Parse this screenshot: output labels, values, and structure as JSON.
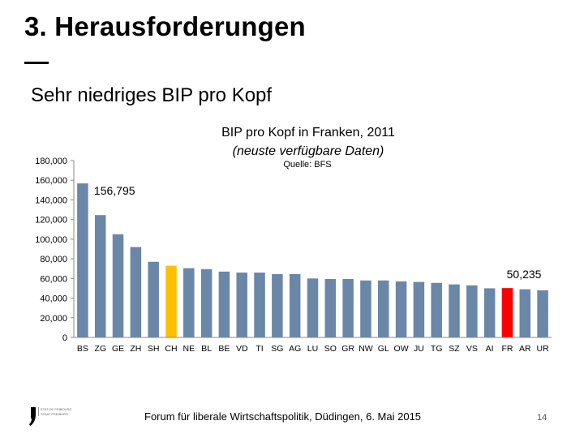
{
  "slide": {
    "title": "3. Herausforderungen",
    "subtitle": "Sehr niedriges BIP pro Kopf"
  },
  "chart_data": {
    "type": "bar",
    "title": "BIP pro Kopf in Franken, 2011",
    "subtitle": "(neuste verfügbare Daten)",
    "source": "Quelle: BFS",
    "xlabel": "",
    "ylabel": "",
    "ylim": [
      0,
      180000
    ],
    "yticks": [
      "0",
      "20,000",
      "40,000",
      "60,000",
      "80,000",
      "100,000",
      "120,000",
      "140,000",
      "160,000",
      "180,000"
    ],
    "grid": false,
    "legend": "none",
    "categories": [
      "BS",
      "ZG",
      "GE",
      "ZH",
      "SH",
      "CH",
      "NE",
      "BL",
      "BE",
      "VD",
      "TI",
      "SG",
      "AG",
      "LU",
      "SO",
      "GR",
      "NW",
      "GL",
      "OW",
      "JU",
      "TG",
      "SZ",
      "VS",
      "AI",
      "FR",
      "AR",
      "UR"
    ],
    "values": [
      156795,
      124500,
      105000,
      92000,
      77000,
      73000,
      70500,
      69500,
      67000,
      66000,
      66000,
      64500,
      64500,
      60000,
      59500,
      59500,
      58000,
      58000,
      57000,
      56500,
      55500,
      54000,
      53000,
      50000,
      50235,
      49000,
      48000
    ],
    "data_labels": [
      {
        "category": "BS",
        "text": "156,795"
      },
      {
        "category": "FR",
        "text": "50,235"
      }
    ],
    "colors": {
      "default": "#6b87a8",
      "highlight_ch": "#ffc000",
      "highlight_fr": "#ff0000"
    },
    "highlights": {
      "CH": "highlight_ch",
      "FR": "highlight_fr"
    }
  },
  "footer": {
    "logo_icon": "fribourg-canton-logo-icon",
    "logo_line1": "ETAT DE FRIBOURG",
    "logo_line2": "STAAT FREIBURG",
    "text": "Forum für liberale Wirtschaftspolitik, Düdingen, 6. Mai 2015",
    "page_number": "14"
  }
}
